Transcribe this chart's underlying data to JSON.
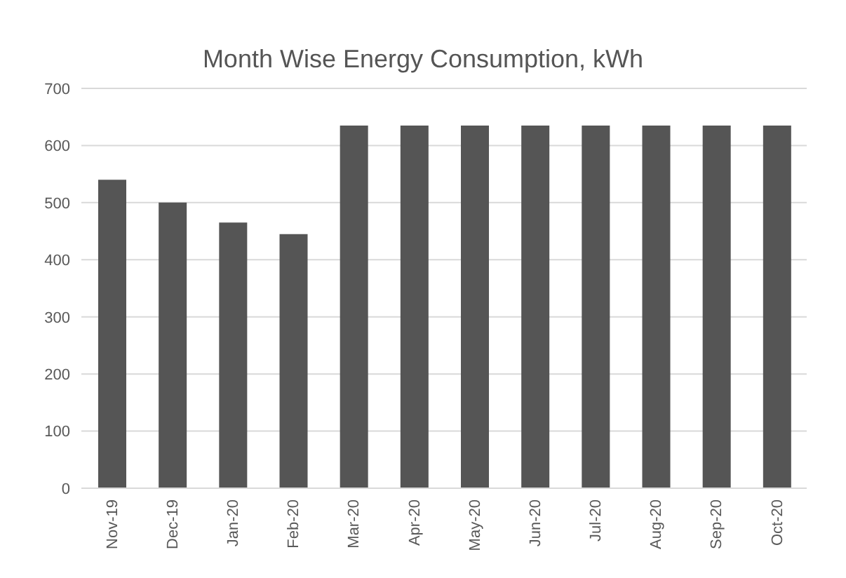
{
  "chart_data": {
    "type": "bar",
    "title": "Month Wise Energy Consumption, kWh",
    "categories": [
      "Nov-19",
      "Dec-19",
      "Jan-20",
      "Feb-20",
      "Mar-20",
      "Apr-20",
      "May-20",
      "Jun-20",
      "Jul-20",
      "Aug-20",
      "Sep-20",
      "Oct-20"
    ],
    "values": [
      540,
      500,
      465,
      445,
      635,
      635,
      635,
      635,
      635,
      635,
      635,
      635
    ],
    "color": "#555555",
    "ylim": [
      0,
      700
    ],
    "yticks": [
      0,
      100,
      200,
      300,
      400,
      500,
      600,
      700
    ],
    "grid": "y"
  }
}
